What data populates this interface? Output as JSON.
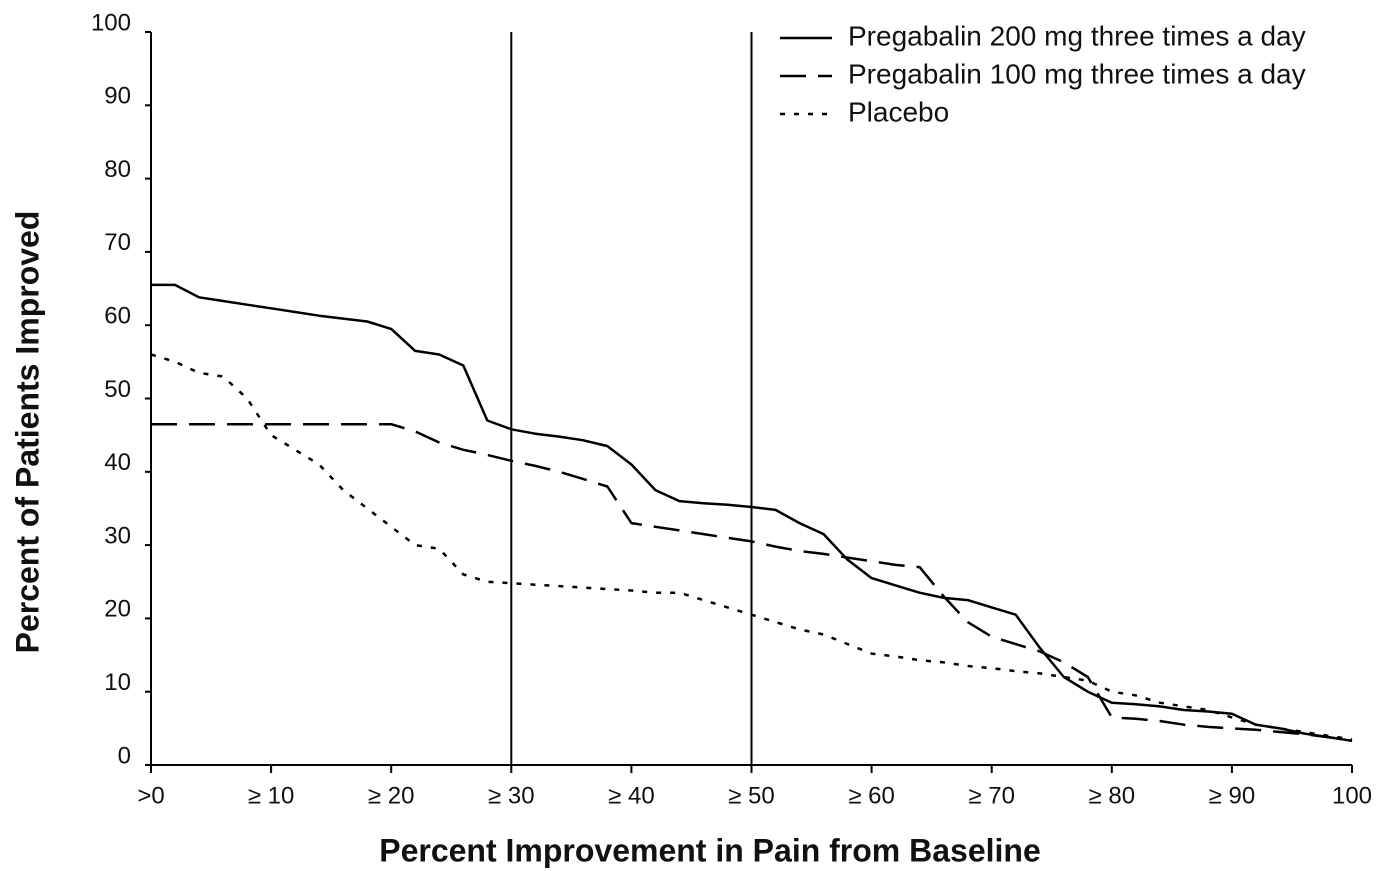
{
  "chart_data": {
    "type": "line",
    "x_label": "Percent Improvement in Pain from Baseline",
    "y_label": "Percent of Patients Improved",
    "x": [
      0,
      2,
      4,
      6,
      8,
      10,
      12,
      14,
      16,
      18,
      20,
      22,
      24,
      26,
      28,
      30,
      32,
      34,
      36,
      38,
      40,
      42,
      44,
      46,
      48,
      50,
      52,
      54,
      56,
      58,
      60,
      62,
      64,
      66,
      68,
      70,
      72,
      74,
      76,
      78,
      80,
      82,
      84,
      86,
      88,
      90,
      92,
      94,
      96,
      98,
      100
    ],
    "series": [
      {
        "name": "Pregabalin 200 mg three times a day",
        "color": "#000000",
        "dash": "solid",
        "values": [
          65.5,
          65.5,
          63.8,
          63.3,
          62.8,
          62.3,
          61.8,
          61.3,
          60.9,
          60.5,
          59.5,
          56.5,
          56,
          54.5,
          47,
          45.8,
          45.2,
          44.8,
          44.3,
          43.5,
          41,
          37.5,
          36,
          35.7,
          35.5,
          35.2,
          34.8,
          33,
          31.5,
          28,
          25.5,
          24.5,
          23.5,
          22.8,
          22.5,
          21.5,
          20.5,
          16,
          12,
          10,
          8.5,
          8.3,
          8,
          7.5,
          7.3,
          7,
          5.5,
          5,
          4.3,
          3.8,
          3.3
        ]
      },
      {
        "name": "Pregabalin 100 mg three times a day",
        "color": "#000000",
        "dash": "dashed",
        "values": [
          46.5,
          46.5,
          46.5,
          46.5,
          46.5,
          46.5,
          46.5,
          46.5,
          46.5,
          46.5,
          46.5,
          45.5,
          44,
          43,
          42.3,
          41.5,
          40.8,
          40,
          39,
          38,
          33,
          32.5,
          32,
          31.5,
          31,
          30.5,
          29.8,
          29.2,
          28.8,
          28.3,
          27.8,
          27.3,
          27,
          23,
          19.5,
          17.5,
          16.5,
          15.5,
          14,
          12,
          6.5,
          6.3,
          6,
          5.5,
          5.2,
          5,
          4.8,
          4.5,
          4.2,
          3.8,
          3.3
        ]
      },
      {
        "name": "Placebo",
        "color": "#000000",
        "dash": "dotted",
        "values": [
          56,
          55,
          53.5,
          53,
          50,
          45,
          43,
          41,
          37.5,
          35,
          32.5,
          30,
          29.5,
          26,
          25,
          24.8,
          24.6,
          24.4,
          24.2,
          24,
          23.8,
          23.5,
          23.5,
          22.5,
          21.5,
          20.5,
          19.5,
          18.5,
          17.8,
          16.5,
          15.2,
          14.8,
          14.3,
          14,
          13.5,
          13.2,
          12.8,
          12.5,
          12,
          11.5,
          10,
          9.5,
          8.5,
          8,
          7.5,
          6.5,
          5.5,
          5,
          4.5,
          4,
          3.5
        ]
      }
    ],
    "reference_lines_x": [
      30,
      50
    ],
    "xlim": [
      0,
      100
    ],
    "xticks": [
      {
        "value": 0,
        "label": ">0"
      },
      {
        "value": 10,
        "label": "≥ 10"
      },
      {
        "value": 20,
        "label": "≥ 20"
      },
      {
        "value": 30,
        "label": "≥ 30"
      },
      {
        "value": 40,
        "label": "≥ 40"
      },
      {
        "value": 50,
        "label": "≥ 50"
      },
      {
        "value": 60,
        "label": "≥ 60"
      },
      {
        "value": 70,
        "label": "≥ 70"
      },
      {
        "value": 80,
        "label": "≥ 80"
      },
      {
        "value": 90,
        "label": "≥ 90"
      },
      100
    ],
    "ylim": [
      0,
      100
    ],
    "yticks": [
      0,
      10,
      20,
      30,
      40,
      50,
      60,
      70,
      80,
      90,
      100
    ],
    "legend": "top-right"
  }
}
